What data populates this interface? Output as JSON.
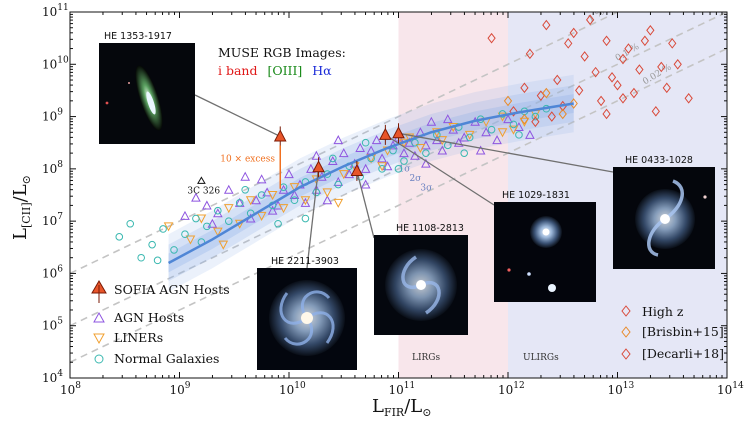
{
  "chart_data": {
    "type": "scatter",
    "xlabel": "L_FIR/L_⊙",
    "ylabel": "L_[CII]/L_⊙",
    "xlim_log10": [
      8,
      14
    ],
    "ylim_log10": [
      4,
      11
    ],
    "x_ticks": [
      "10^8",
      "10^9",
      "10^10",
      "10^11",
      "10^12",
      "10^13",
      "10^14"
    ],
    "y_ticks": [
      "10^4",
      "10^5",
      "10^6",
      "10^7",
      "10^8",
      "10^9",
      "10^10",
      "10^11"
    ],
    "regions": [
      {
        "name": "LIRGs",
        "x_range_log10": [
          11,
          12
        ],
        "color": "#f6dde4"
      },
      {
        "name": "ULIRGs",
        "x_range_log10": [
          12,
          14
        ],
        "color": "#dcdff3"
      }
    ],
    "ratio_lines": [
      {
        "label": "1 %",
        "ratio": 0.01
      },
      {
        "label": "0.1 %",
        "ratio": 0.001
      },
      {
        "label": "0.02 %",
        "ratio": 0.0002
      }
    ],
    "sigma_labels": [
      "1σ",
      "2σ",
      "3σ"
    ],
    "series": [
      {
        "name": "SOFIA AGN Hosts",
        "marker": "triangle-filled",
        "color": "#e8552a",
        "points": [
          [
            9.92,
            8.62
          ],
          [
            10.27,
            8.03
          ],
          [
            10.62,
            7.96
          ],
          [
            10.88,
            8.65
          ],
          [
            11.0,
            8.68
          ]
        ]
      },
      {
        "name": "AGN Hosts",
        "marker": "triangle-open",
        "color": "#8e55e0",
        "points": [
          [
            9.05,
            7.1
          ],
          [
            9.15,
            7.45
          ],
          [
            9.25,
            7.3
          ],
          [
            9.35,
            7.15
          ],
          [
            9.45,
            7.6
          ],
          [
            9.55,
            7.35
          ],
          [
            9.65,
            7.05
          ],
          [
            9.7,
            7.4
          ],
          [
            9.75,
            7.8
          ],
          [
            9.8,
            7.55
          ],
          [
            9.85,
            7.2
          ],
          [
            9.9,
            7.3
          ],
          [
            9.95,
            7.6
          ],
          [
            10.0,
            7.9
          ],
          [
            10.05,
            7.5
          ],
          [
            10.1,
            7.7
          ],
          [
            10.15,
            7.35
          ],
          [
            10.2,
            8.0
          ],
          [
            10.25,
            7.6
          ],
          [
            10.3,
            7.85
          ],
          [
            10.35,
            7.4
          ],
          [
            10.4,
            8.15
          ],
          [
            10.45,
            7.75
          ],
          [
            10.5,
            8.3
          ],
          [
            10.55,
            7.9
          ],
          [
            10.6,
            8.1
          ],
          [
            10.65,
            8.4
          ],
          [
            10.7,
            8.0
          ],
          [
            10.75,
            8.35
          ],
          [
            10.8,
            8.55
          ],
          [
            10.85,
            8.2
          ],
          [
            10.9,
            8.05
          ],
          [
            10.95,
            8.45
          ],
          [
            11.0,
            8.6
          ],
          [
            11.05,
            8.3
          ],
          [
            11.1,
            8.5
          ],
          [
            11.15,
            8.25
          ],
          [
            11.2,
            8.7
          ],
          [
            11.25,
            8.45
          ],
          [
            11.3,
            8.9
          ],
          [
            11.35,
            8.55
          ],
          [
            11.4,
            8.35
          ],
          [
            11.5,
            8.75
          ],
          [
            11.6,
            8.6
          ],
          [
            11.7,
            8.9
          ],
          [
            11.8,
            8.7
          ],
          [
            11.9,
            8.55
          ],
          [
            12.0,
            8.95
          ],
          [
            12.1,
            8.8
          ],
          [
            12.2,
            8.65
          ],
          [
            11.45,
            8.95
          ],
          [
            11.55,
            8.5
          ],
          [
            10.25,
            8.25
          ],
          [
            10.45,
            8.55
          ],
          [
            9.6,
            7.85
          ],
          [
            9.3,
            6.95
          ],
          [
            10.7,
            7.7
          ],
          [
            11.25,
            8.1
          ],
          [
            11.75,
            8.35
          ]
        ]
      },
      {
        "name": "LINERs",
        "marker": "triangle-down-open",
        "color": "#f0a030",
        "points": [
          [
            8.9,
            6.9
          ],
          [
            9.1,
            6.65
          ],
          [
            9.2,
            7.05
          ],
          [
            9.35,
            6.8
          ],
          [
            9.45,
            7.25
          ],
          [
            9.55,
            6.95
          ],
          [
            9.65,
            7.4
          ],
          [
            9.75,
            7.1
          ],
          [
            9.85,
            7.5
          ],
          [
            9.95,
            7.25
          ],
          [
            10.05,
            7.65
          ],
          [
            10.15,
            7.4
          ],
          [
            10.25,
            7.8
          ],
          [
            10.35,
            7.55
          ],
          [
            10.5,
            7.9
          ],
          [
            10.6,
            8.05
          ],
          [
            10.75,
            8.2
          ],
          [
            10.9,
            8.35
          ],
          [
            11.05,
            8.5
          ],
          [
            11.2,
            8.4
          ],
          [
            11.35,
            8.7
          ],
          [
            11.5,
            8.8
          ],
          [
            11.65,
            8.65
          ],
          [
            11.8,
            8.9
          ],
          [
            11.95,
            9.0
          ],
          [
            12.05,
            8.75
          ],
          [
            12.15,
            8.9
          ],
          [
            12.25,
            9.05
          ],
          [
            11.1,
            8.6
          ],
          [
            11.4,
            8.55
          ],
          [
            9.4,
            6.55
          ],
          [
            10.45,
            7.35
          ],
          [
            11.95,
            8.7
          ],
          [
            10.85,
            8.05
          ]
        ]
      },
      {
        "name": "Normal Galaxies",
        "marker": "circle-open",
        "color": "#3ab8b0",
        "points": [
          [
            8.45,
            6.7
          ],
          [
            8.55,
            6.95
          ],
          [
            8.65,
            6.3
          ],
          [
            8.75,
            6.55
          ],
          [
            8.85,
            6.85
          ],
          [
            8.95,
            6.45
          ],
          [
            9.05,
            6.75
          ],
          [
            9.15,
            7.05
          ],
          [
            9.25,
            6.9
          ],
          [
            9.35,
            7.2
          ],
          [
            9.45,
            7.0
          ],
          [
            9.55,
            7.35
          ],
          [
            9.65,
            7.15
          ],
          [
            9.75,
            7.5
          ],
          [
            9.85,
            7.3
          ],
          [
            9.95,
            7.65
          ],
          [
            10.05,
            7.4
          ],
          [
            10.15,
            7.75
          ],
          [
            10.25,
            7.55
          ],
          [
            10.35,
            7.9
          ],
          [
            10.45,
            7.7
          ],
          [
            10.55,
            8.05
          ],
          [
            10.65,
            7.85
          ],
          [
            10.75,
            8.2
          ],
          [
            10.85,
            8.0
          ],
          [
            10.95,
            8.35
          ],
          [
            11.05,
            8.15
          ],
          [
            11.15,
            8.5
          ],
          [
            11.25,
            8.3
          ],
          [
            11.35,
            8.65
          ],
          [
            11.45,
            8.45
          ],
          [
            11.55,
            8.8
          ],
          [
            11.65,
            8.6
          ],
          [
            11.75,
            8.95
          ],
          [
            11.85,
            8.75
          ],
          [
            11.95,
            9.05
          ],
          [
            12.05,
            8.85
          ],
          [
            12.15,
            9.1
          ],
          [
            12.25,
            9.0
          ],
          [
            12.35,
            9.15
          ],
          [
            10.15,
            7.05
          ],
          [
            9.9,
            6.95
          ],
          [
            9.6,
            7.6
          ],
          [
            11.0,
            8.0
          ],
          [
            11.6,
            8.3
          ],
          [
            12.1,
            8.65
          ],
          [
            8.8,
            6.25
          ],
          [
            10.4,
            8.2
          ],
          [
            10.7,
            8.5
          ],
          [
            9.2,
            6.6
          ]
        ]
      },
      {
        "name": "High z",
        "marker": "diamond-open",
        "color": "#d94a3a",
        "points": [
          [
            11.85,
            10.5
          ],
          [
            12.3,
            9.4
          ],
          [
            12.45,
            9.7
          ],
          [
            12.6,
            10.6
          ],
          [
            12.7,
            10.15
          ],
          [
            12.8,
            9.85
          ],
          [
            12.9,
            10.45
          ],
          [
            13.0,
            9.6
          ],
          [
            13.1,
            10.3
          ],
          [
            13.2,
            9.9
          ],
          [
            13.3,
            10.65
          ],
          [
            13.45,
            9.55
          ],
          [
            13.55,
            10.0
          ],
          [
            13.65,
            9.35
          ],
          [
            12.2,
            10.2
          ],
          [
            12.35,
            10.75
          ],
          [
            12.5,
            9.2
          ],
          [
            12.65,
            9.5
          ],
          [
            12.75,
            10.85
          ],
          [
            12.85,
            9.3
          ],
          [
            13.05,
            10.1
          ],
          [
            13.15,
            9.45
          ],
          [
            13.25,
            10.45
          ],
          [
            13.4,
            9.95
          ],
          [
            13.5,
            10.4
          ],
          [
            12.55,
            10.4
          ],
          [
            12.95,
            9.75
          ],
          [
            13.35,
            9.1
          ],
          [
            12.15,
            9.55
          ],
          [
            12.4,
            9.0
          ],
          [
            12.05,
            9.1
          ],
          [
            12.25,
            8.9
          ]
        ]
      },
      {
        "name": "[Brisbin+15]",
        "marker": "diamond-open",
        "color": "#e88a2a",
        "points": [
          [
            12.0,
            9.3
          ],
          [
            12.15,
            8.95
          ],
          [
            12.35,
            9.45
          ],
          [
            12.5,
            9.05
          ],
          [
            12.6,
            9.25
          ]
        ]
      },
      {
        "name": "[Decarli+18]",
        "marker": "diamond-open",
        "color": "#d94a3a",
        "points": [
          [
            12.9,
            9.05
          ],
          [
            13.05,
            9.35
          ]
        ]
      }
    ],
    "fit_curve": [
      [
        8.9,
        6.2
      ],
      [
        9.3,
        6.65
      ],
      [
        9.7,
        7.15
      ],
      [
        10.1,
        7.65
      ],
      [
        10.5,
        8.05
      ],
      [
        10.9,
        8.4
      ],
      [
        11.3,
        8.7
      ],
      [
        11.7,
        8.92
      ],
      [
        12.1,
        9.08
      ],
      [
        12.6,
        9.25
      ]
    ],
    "annotations": {
      "excess_label": "10 × excess",
      "excess_x": 9.92,
      "excess_from": 7.62,
      "excess_to": 8.6,
      "source_3c326": {
        "label": "3C 326",
        "x": 9.2,
        "y": 7.78
      },
      "muse_title": "MUSE RGB Images:",
      "muse_bands": [
        {
          "label": "i band",
          "color": "#e01818"
        },
        {
          "label": "[OIII]",
          "color": "#1a8a1a"
        },
        {
          "label": "Hα",
          "color": "#1a2ad8"
        }
      ],
      "region_labels": [
        "LIRGs",
        "ULIRGs"
      ]
    },
    "insets": [
      {
        "title": "HE 1353-1917",
        "target": [
          9.92,
          8.62
        ]
      },
      {
        "title": "HE 2211-3903",
        "target": [
          10.27,
          8.03
        ]
      },
      {
        "title": "HE 1108-2813",
        "target": [
          10.62,
          7.96
        ]
      },
      {
        "title": "HE 1029-1831",
        "target": [
          10.88,
          8.65
        ]
      },
      {
        "title": "HE 0433-1028",
        "target": [
          11.0,
          8.68
        ]
      }
    ],
    "legend_left": [
      "SOFIA AGN Hosts",
      "AGN Hosts",
      "LINERs",
      "Normal Galaxies"
    ],
    "legend_right": [
      "High z",
      "[Brisbin+15]",
      "[Decarli+18]"
    ]
  }
}
